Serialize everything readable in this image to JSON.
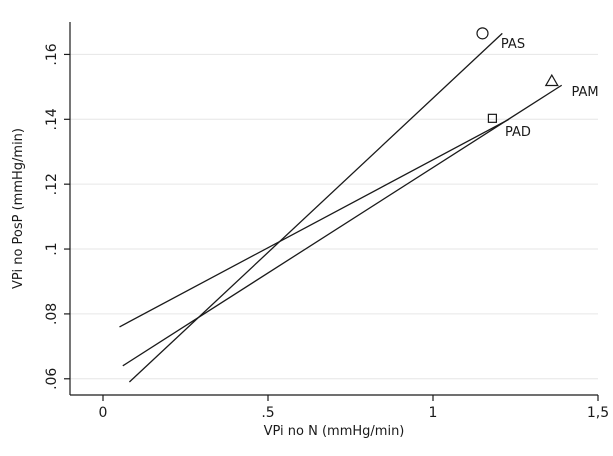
{
  "chart_data": {
    "type": "line",
    "xlabel": "VPi no N (mmHg/min)",
    "ylabel": "VPi no PosP (mmHg/min)",
    "xlim": [
      -0.1,
      1.5
    ],
    "ylim": [
      0.055,
      0.17
    ],
    "grid": true,
    "x_ticks": [
      0,
      0.5,
      1,
      1.5
    ],
    "x_tick_labels": [
      "0",
      ".5",
      "1",
      "1,5"
    ],
    "y_ticks": [
      0.06,
      0.08,
      0.1,
      0.12,
      0.14,
      0.16
    ],
    "y_tick_labels": [
      ".06",
      ".08",
      ".1",
      ".12",
      ".14",
      ".16"
    ],
    "series": [
      {
        "name": "PAS",
        "fit_line": {
          "x": [
            0.08,
            1.21
          ],
          "y": [
            0.059,
            0.1665
          ]
        },
        "marker": "circle",
        "point": {
          "x": 1.15,
          "y": 0.1665
        }
      },
      {
        "name": "PAM",
        "fit_line": {
          "x": [
            0.06,
            1.39
          ],
          "y": [
            0.064,
            0.1505
          ]
        },
        "marker": "triangle",
        "point": {
          "x": 1.36,
          "y": 0.1518
        }
      },
      {
        "name": "PAD",
        "fit_line": {
          "x": [
            0.05,
            1.23
          ],
          "y": [
            0.076,
            0.14
          ]
        },
        "marker": "square",
        "point": {
          "x": 1.18,
          "y": 0.1403
        }
      }
    ],
    "colors": {
      "line": "#1a1a1a",
      "grid": "#e6e6e6",
      "axis": "#1a1a1a",
      "background": "#ffffff"
    }
  }
}
